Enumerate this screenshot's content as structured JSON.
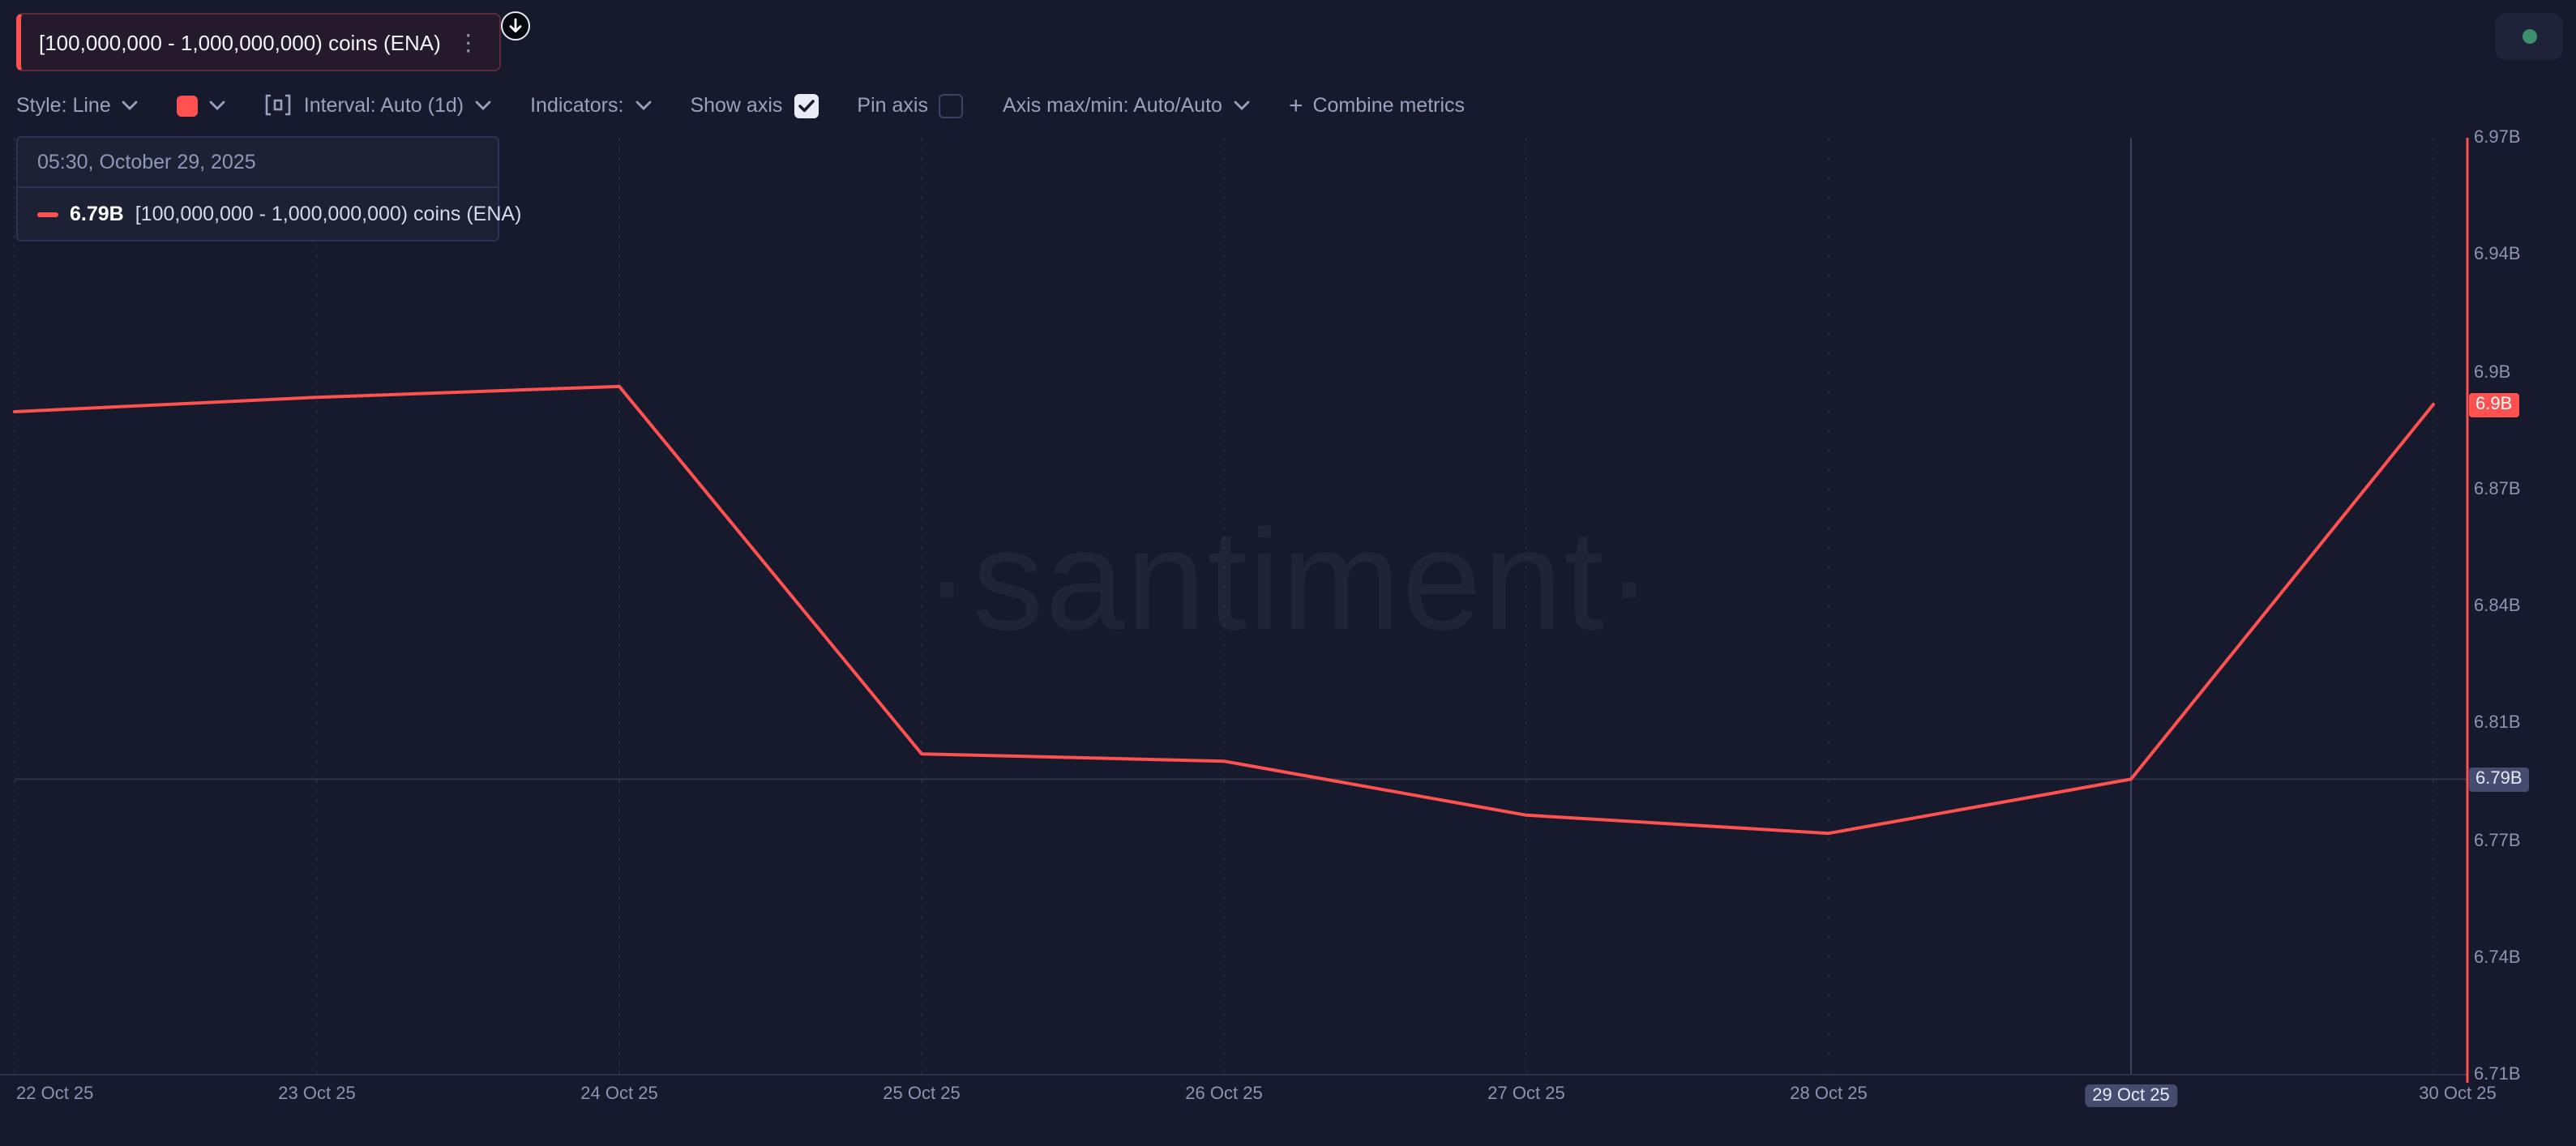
{
  "header": {
    "metric_chip_label": "[100,000,000 - 1,000,000,000) coins (ENA)",
    "kebab_glyph": "⋮",
    "accent_color": "#ff5150"
  },
  "toolbar": {
    "style_label": "Style: Line",
    "interval_label": "Interval: Auto (1d)",
    "indicators_label": "Indicators:",
    "show_axis_label": "Show axis",
    "show_axis_checked": true,
    "pin_axis_label": "Pin axis",
    "pin_axis_checked": false,
    "axis_maxmin_label": "Axis max/min: Auto/Auto",
    "plus_glyph": "+",
    "combine_metrics_label": "Combine metrics"
  },
  "tooltip": {
    "timestamp": "05:30, October 29, 2025",
    "value": "6.79B",
    "metric": "[100,000,000 - 1,000,000,000) coins (ENA)"
  },
  "watermark": "·santiment·",
  "axis": {
    "y_badge_current": "6.9B",
    "y_badge_crosshair": "6.79B"
  },
  "chart_data": {
    "type": "line",
    "title": "[100,000,000 - 1,000,000,000) coins (ENA)",
    "categories": [
      "22 Oct 25",
      "23 Oct 25",
      "24 Oct 25",
      "25 Oct 25",
      "26 Oct 25",
      "27 Oct 25",
      "28 Oct 25",
      "29 Oct 25",
      "30 Oct 25"
    ],
    "values": [
      6.894,
      6.898,
      6.901,
      6.799,
      6.797,
      6.782,
      6.777,
      6.792,
      6.896
    ],
    "units": "B",
    "ylim": [
      6.71,
      6.97
    ],
    "y_tick_labels": [
      "6.97B",
      "6.94B",
      "6.9B",
      "6.87B",
      "6.84B",
      "6.81B",
      "6.77B",
      "6.74B",
      "6.71B"
    ],
    "highlighted_x": "29 Oct 25",
    "series_color": "#ff5150",
    "grid": "vertical-dashed",
    "legend_position": "none",
    "xlabel": "",
    "ylabel": ""
  }
}
